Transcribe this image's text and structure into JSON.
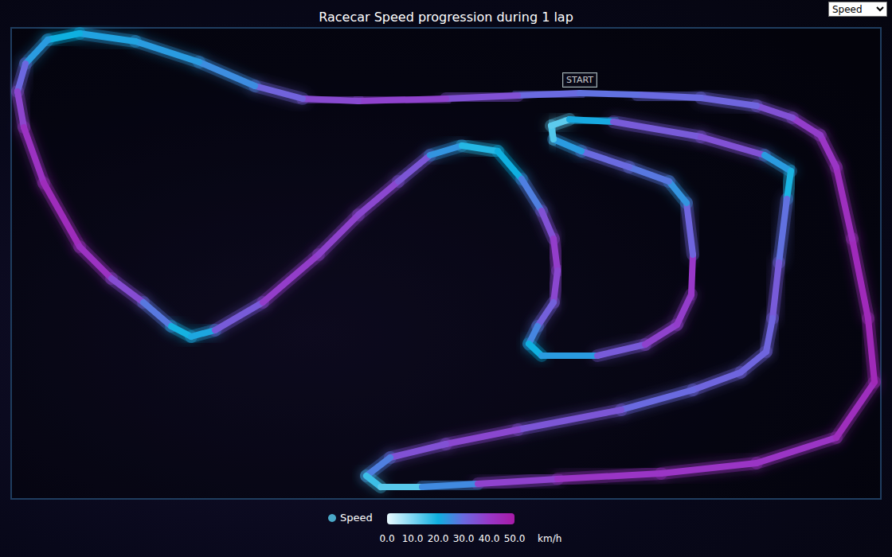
{
  "chart_data": {
    "type": "line",
    "title": "Racecar Speed progression during 1 lap",
    "series": [
      {
        "name": "Speed",
        "x": [
          714,
          636,
          546,
          436,
          366,
          306,
          236,
          156,
          86,
          46,
          18,
          8,
          16,
          41,
          86,
          126,
          166,
          201,
          226,
          256,
          316,
          386,
          436,
          486,
          526,
          566,
          611,
          641,
          666,
          681,
          686,
          681,
          661,
          650,
          666,
          736,
          796,
          836,
          854,
          856,
          848,
          826,
          776,
          716,
          681,
          678,
          701,
          756,
          866,
          946,
          979,
          974,
          964,
          956,
          948,
          916,
          856,
          766,
          636,
          546,
          476,
          446,
          464,
          516,
          586,
          686,
          816,
          936,
          1036,
          1084,
          1076,
          1056,
          1036,
          1016,
          981,
          936,
          866,
          786,
          714
        ],
        "y": [
          510,
          507,
          503,
          500,
          503,
          519,
          549,
          575,
          585,
          577,
          547,
          512,
          467,
          397,
          317,
          277,
          247,
          217,
          204,
          212,
          247,
          307,
          357,
          399,
          432,
          444,
          437,
          402,
          362,
          327,
          287,
          247,
          217,
          195,
          180,
          180,
          194,
          219,
          257,
          307,
          372,
          399,
          417,
          437,
          452,
          469,
          477,
          474,
          455,
          432,
          412,
          377,
          297,
          227,
          185,
          159,
          137,
          112,
          87,
          69,
          52,
          29,
          15,
          15,
          19,
          25,
          32,
          45,
          77,
          147,
          227,
          327,
          417,
          457,
          479,
          494,
          504,
          508,
          510
        ],
        "values": [
          28,
          32,
          38,
          38,
          35,
          28,
          22,
          24,
          20,
          20,
          26,
          35,
          40,
          44,
          44,
          40,
          32,
          24,
          15,
          28,
          38,
          40,
          36,
          38,
          30,
          18,
          18,
          22,
          32,
          38,
          40,
          34,
          30,
          22,
          18,
          28,
          38,
          38,
          40,
          40,
          22,
          26,
          30,
          30,
          16,
          12,
          14,
          28,
          38,
          32,
          14,
          24,
          34,
          32,
          30,
          32,
          30,
          30,
          38,
          36,
          34,
          20,
          12,
          15,
          36,
          40,
          42,
          40,
          42,
          45,
          45,
          44,
          42,
          40,
          38,
          32,
          30,
          30,
          28
        ]
      }
    ],
    "xlim": [
      0,
      1092
    ],
    "ylim": [
      0,
      592
    ],
    "grid": false,
    "tick_labels": false,
    "colorbar": {
      "range": [
        0,
        50
      ],
      "ticks": [
        {
          "value": 0,
          "label": "0.0"
        },
        {
          "value": 10,
          "label": "10.0"
        },
        {
          "value": 20,
          "label": "20.0"
        },
        {
          "value": 30,
          "label": "30.0"
        },
        {
          "value": 40,
          "label": "40.0"
        },
        {
          "value": 50,
          "label": "50.0"
        }
      ],
      "unit": "km/h",
      "colors": [
        "#eafaff",
        "#7fd6f2",
        "#0fb0e0",
        "#6a6ae0",
        "#9838c8",
        "#a81aa8"
      ]
    },
    "annotations": [
      {
        "text": "START",
        "x": 714,
        "y": 510
      }
    ],
    "selector": [
      "Speed"
    ]
  }
}
